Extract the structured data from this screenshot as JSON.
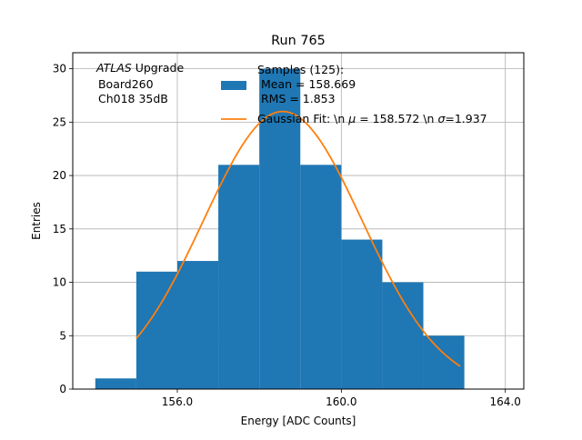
{
  "chart_data": {
    "type": "bar",
    "title": "Run 765",
    "xlabel": "Energy [ADC Counts]",
    "ylabel": "Entries",
    "xlim": [
      153.45,
      164.45
    ],
    "ylim": [
      0,
      31.5
    ],
    "x_ticks": [
      156,
      160,
      164
    ],
    "x_tick_labels": [
      "156.0",
      "160.0",
      "164.0"
    ],
    "y_ticks": [
      0,
      5,
      10,
      15,
      20,
      25,
      30
    ],
    "grid": true,
    "bin_width": 1,
    "bins": [
      {
        "left": 154,
        "count": 1
      },
      {
        "left": 155,
        "count": 11
      },
      {
        "left": 156,
        "count": 12
      },
      {
        "left": 157,
        "count": 21
      },
      {
        "left": 158,
        "count": 30
      },
      {
        "left": 159,
        "count": 21
      },
      {
        "left": 160,
        "count": 14
      },
      {
        "left": 161,
        "count": 10
      },
      {
        "left": 162,
        "count": 5
      }
    ],
    "fit": {
      "amplitude": 26.0,
      "mu": 158.572,
      "sigma": 1.937,
      "x_range": [
        155.0,
        162.9
      ]
    },
    "colors": {
      "bars": "#1f77b4",
      "fit": "#ff7f0e",
      "grid": "#b0b0b0"
    },
    "annotation": {
      "italic": "ATLAS",
      "rest": " Upgrade",
      "line2": " Board260",
      "line3": " Ch018 35dB"
    },
    "legend": {
      "placement": "top-right",
      "hist_line1": "Samples (125):",
      "hist_line2": " Mean = 158.669",
      "hist_line3": " RMS = 1.853",
      "fit_prefix": "Gaussian Fit: \\n ",
      "fit_mu_symbol": "μ",
      "fit_middle": " = 158.572 \\n ",
      "fit_sigma_symbol": "σ",
      "fit_suffix": "=1.937"
    }
  }
}
